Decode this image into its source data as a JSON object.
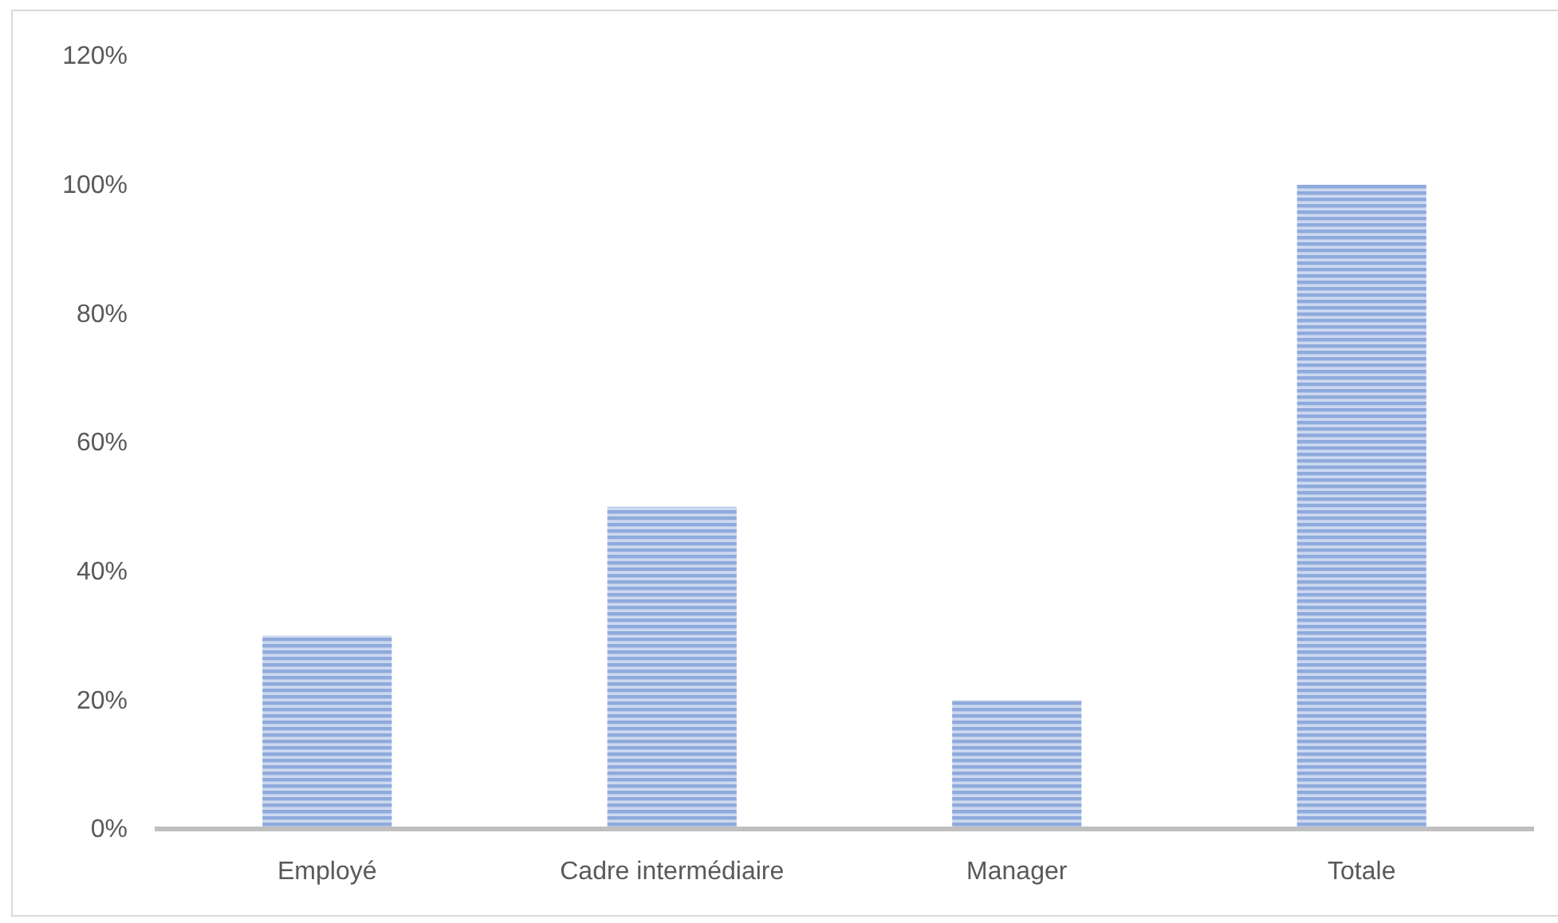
{
  "chart_data": {
    "type": "bar",
    "categories": [
      "Employé",
      "Cadre intermédiaire",
      "Manager",
      "Totale"
    ],
    "values": [
      30,
      50,
      20,
      100
    ],
    "color": "#8faadc",
    "ylim": [
      0,
      120
    ],
    "yticks": [
      {
        "value": 0,
        "label": "0%"
      },
      {
        "value": 20,
        "label": "20%"
      },
      {
        "value": 40,
        "label": "40%"
      },
      {
        "value": 60,
        "label": "60%"
      },
      {
        "value": 80,
        "label": "80%"
      },
      {
        "value": 100,
        "label": "100%"
      },
      {
        "value": 120,
        "label": "120%"
      }
    ],
    "grid": false
  }
}
